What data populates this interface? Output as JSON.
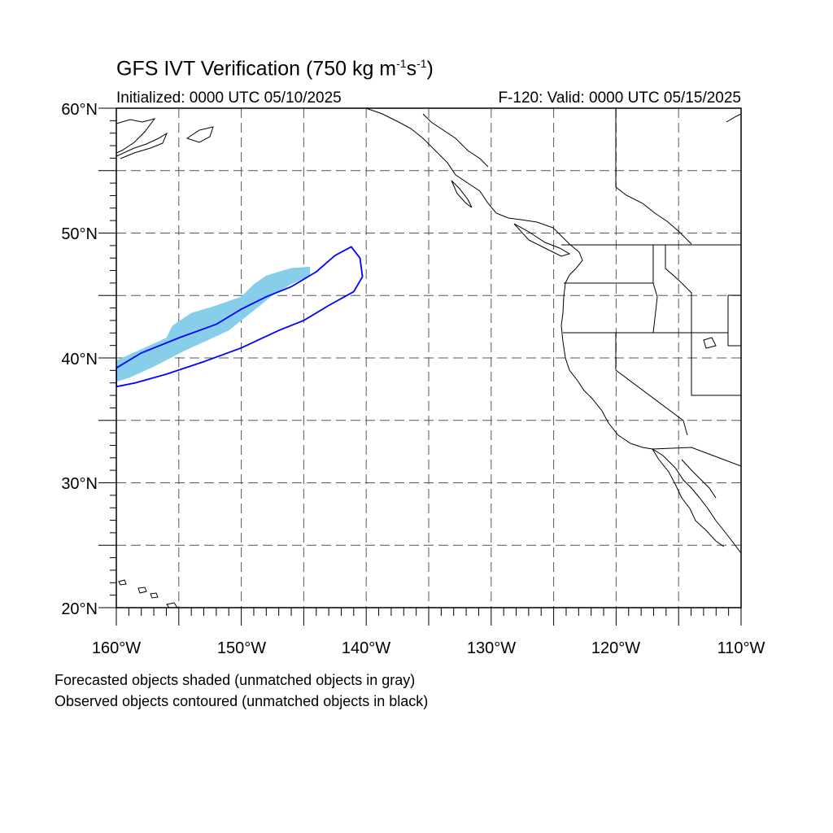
{
  "title": {
    "main": "GFS IVT Verification (750 kg m",
    "exp1": "-1",
    "mid": "s",
    "exp2": "-1",
    "end": ")"
  },
  "subtitle_left": "Initialized: 0000 UTC 05/10/2025",
  "subtitle_right": "F-120: Valid: 0000 UTC 05/15/2025",
  "lat_labels": [
    "60°N",
    "50°N",
    "40°N",
    "30°N",
    "20°N"
  ],
  "lon_labels": [
    "160°W",
    "150°W",
    "140°W",
    "130°W",
    "120°W",
    "110°W"
  ],
  "notes": [
    "Forecasted objects shaded (unmatched objects in gray)",
    "Observed objects contoured (unmatched objects in black)"
  ],
  "colors": {
    "forecast_fill": "#87ceeb",
    "observed_contour": "#0000ff",
    "coastline": "#000000",
    "grid": "#555555"
  },
  "map_extent": {
    "lon": [
      -160,
      -110
    ],
    "lat": [
      20,
      60
    ]
  },
  "forecast_object": [
    [
      -160,
      39.8
    ],
    [
      -158,
      40.7
    ],
    [
      -156,
      41.6
    ],
    [
      -155.5,
      42.6
    ],
    [
      -154,
      43.6
    ],
    [
      -152,
      44.2
    ],
    [
      -150,
      44.9
    ],
    [
      -149,
      45.9
    ],
    [
      -148,
      46.6
    ],
    [
      -146,
      47.2
    ],
    [
      -144.5,
      47.3
    ],
    [
      -144.5,
      46.6
    ],
    [
      -146,
      45.9
    ],
    [
      -147.5,
      45.0
    ],
    [
      -149,
      43.8
    ],
    [
      -151,
      42.2
    ],
    [
      -152.5,
      41.5
    ],
    [
      -154.5,
      40.6
    ],
    [
      -157,
      39.3
    ],
    [
      -159,
      38.4
    ],
    [
      -160,
      38.1
    ]
  ],
  "observed_object": [
    [
      -160,
      39.2
    ],
    [
      -158,
      40.4
    ],
    [
      -155,
      41.6
    ],
    [
      -152,
      42.7
    ],
    [
      -150,
      43.9
    ],
    [
      -148,
      44.9
    ],
    [
      -146,
      45.7
    ],
    [
      -144,
      46.9
    ],
    [
      -142.5,
      48.2
    ],
    [
      -141.2,
      48.9
    ],
    [
      -140.5,
      48.0
    ],
    [
      -140.3,
      46.5
    ],
    [
      -141,
      45.3
    ],
    [
      -143,
      44.2
    ],
    [
      -145,
      43.0
    ],
    [
      -147,
      42.2
    ],
    [
      -150,
      40.8
    ],
    [
      -153,
      39.7
    ],
    [
      -156,
      38.7
    ],
    [
      -158.5,
      38.0
    ],
    [
      -160,
      37.7
    ]
  ]
}
